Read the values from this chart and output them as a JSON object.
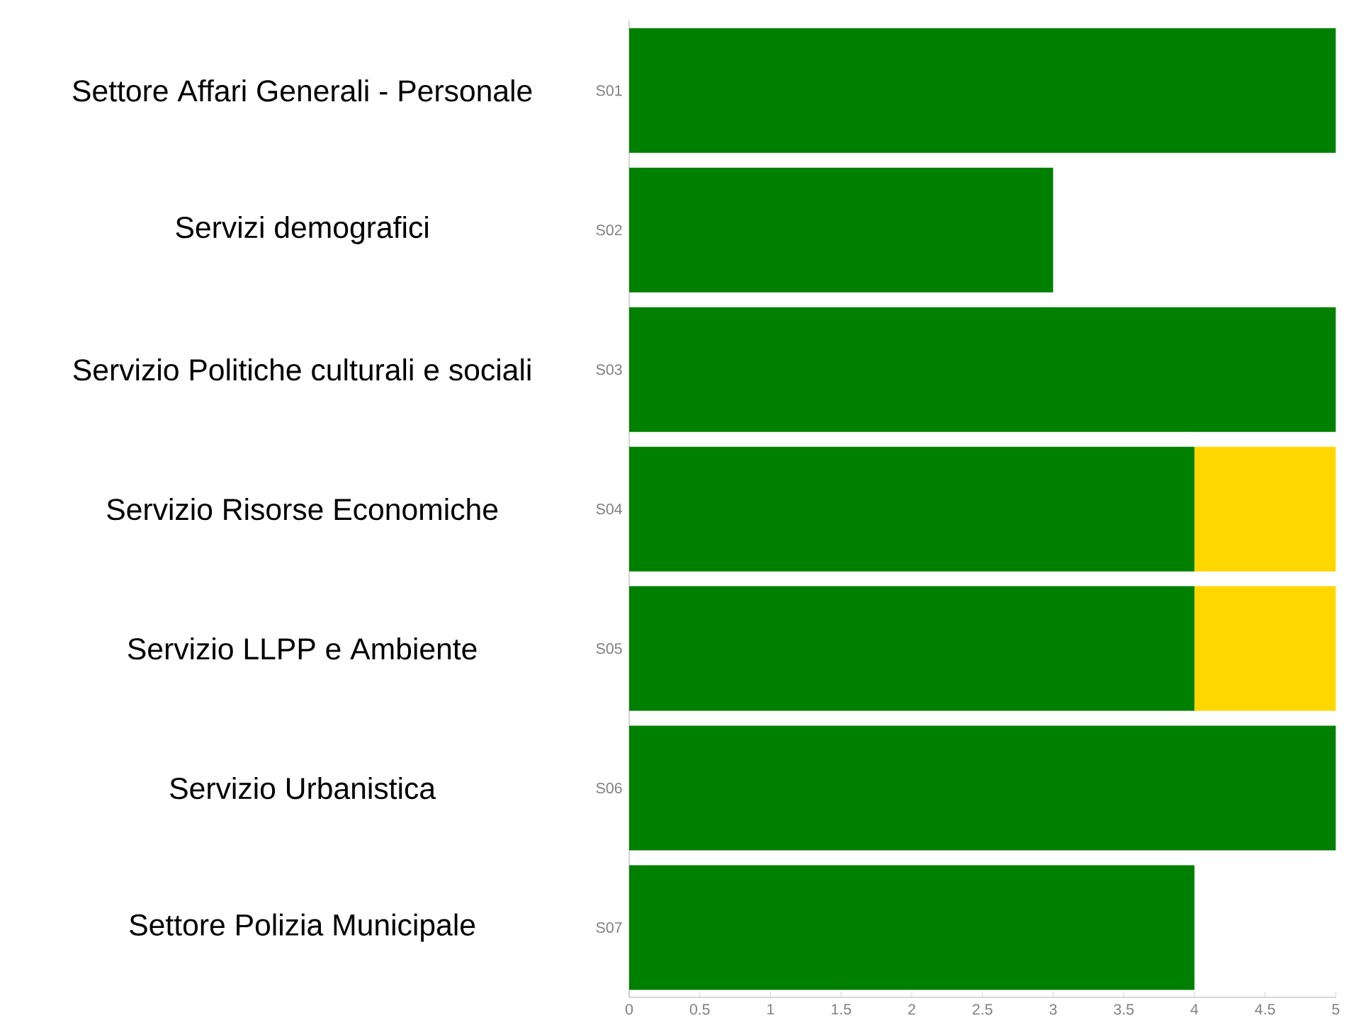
{
  "chart_data": {
    "type": "bar",
    "orientation": "horizontal",
    "stacked": true,
    "categories": [
      "S01",
      "S02",
      "S03",
      "S04",
      "S05",
      "S06",
      "S07"
    ],
    "series": [
      {
        "color": "#008000",
        "values": [
          5,
          3,
          5,
          4,
          4,
          5,
          4
        ]
      },
      {
        "color": "#ffd700",
        "values": [
          null,
          null,
          null,
          1,
          1,
          null,
          null
        ]
      }
    ],
    "xlim": [
      0,
      5
    ],
    "xticks": [
      0,
      0.5,
      1,
      1.5,
      2,
      2.5,
      3,
      3.5,
      4,
      4.5,
      5
    ],
    "annotations": [
      "Settore  Affari Generali - Personale",
      "Servizi demografici",
      "Servizio Politiche culturali e sociali",
      "Servizio Risorse Economiche",
      "Servizio LLPP e Ambiente",
      "Servizio Urbanistica",
      "Settore Polizia Municipale"
    ]
  }
}
